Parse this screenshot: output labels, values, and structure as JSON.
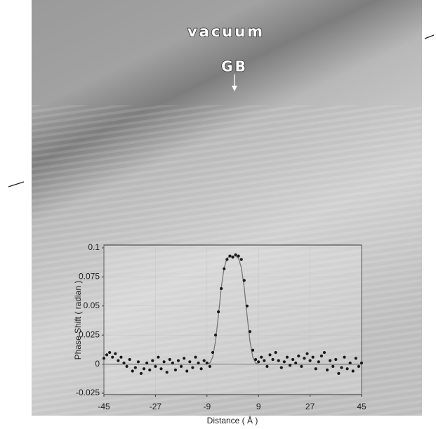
{
  "chart_data": {
    "type": "scatter",
    "annotations": [
      "vacuum",
      "GB"
    ],
    "xlabel": "Distance ( Å )",
    "ylabel": "Phase Shift ( radian )",
    "xlim": [
      -45,
      45
    ],
    "xticks": [
      -45,
      -27,
      -9,
      9,
      27,
      45
    ],
    "ylim": [
      -0.025,
      0.1
    ],
    "yticks": [
      -0.025,
      0,
      0.025,
      0.05,
      0.075,
      0.1
    ],
    "grid": true,
    "x": [
      -45,
      -44,
      -43,
      -42,
      -41,
      -40,
      -39,
      -38,
      -37,
      -36,
      -35,
      -34,
      -33,
      -32,
      -31,
      -30,
      -29,
      -28,
      -27,
      -26,
      -25,
      -24,
      -23,
      -22,
      -21,
      -20,
      -19,
      -18,
      -17,
      -16,
      -15,
      -14,
      -13,
      -12,
      -11,
      -10,
      -9,
      -8,
      -7,
      -6,
      -5,
      -4,
      -3,
      -2,
      -1,
      0,
      1,
      2,
      3,
      4,
      5,
      6,
      7,
      8,
      9,
      10,
      11,
      12,
      13,
      14,
      15,
      16,
      17,
      18,
      19,
      20,
      21,
      22,
      23,
      24,
      25,
      26,
      27,
      28,
      29,
      30,
      31,
      32,
      33,
      34,
      35,
      36,
      37,
      38,
      39,
      40,
      41,
      42,
      43,
      44,
      45
    ],
    "series": [
      {
        "mode": "line",
        "color": "#777777",
        "values": [
          0,
          0,
          0,
          0,
          0,
          0,
          0,
          0,
          0,
          0,
          0,
          0,
          0,
          0,
          0,
          0,
          0,
          0,
          0,
          0,
          0,
          0,
          0,
          0,
          0,
          0,
          0,
          0,
          0,
          0,
          0,
          0,
          0,
          0,
          0,
          0,
          0,
          0.001,
          0.006,
          0.02,
          0.042,
          0.066,
          0.083,
          0.091,
          0.093,
          0.093,
          0.093,
          0.091,
          0.083,
          0.066,
          0.042,
          0.02,
          0.006,
          0.001,
          0,
          0,
          0,
          0,
          0,
          0,
          0,
          0,
          0,
          0,
          0,
          0,
          0,
          0,
          0,
          0,
          0,
          0,
          0,
          0,
          0,
          0,
          0,
          0,
          0,
          0,
          0,
          0,
          0,
          0,
          0,
          0,
          0,
          0,
          0,
          0,
          0
        ]
      },
      {
        "mode": "dots",
        "color": "#1a1a1a",
        "values": [
          0.005,
          0.008,
          0.01,
          0.006,
          0.009,
          0.003,
          0.006,
          0.001,
          -0.002,
          0.004,
          -0.006,
          -0.003,
          0.002,
          -0.008,
          -0.004,
          0.001,
          -0.005,
          0.003,
          -0.002,
          0.006,
          -0.004,
          0.002,
          -0.007,
          0.004,
          0.001,
          -0.005,
          0.003,
          -0.002,
          0.005,
          -0.006,
          0.002,
          -0.003,
          0.006,
          0.001,
          -0.004,
          0.003,
          0.001,
          -0.002,
          0.01,
          0.025,
          0.045,
          0.065,
          0.082,
          0.09,
          0.093,
          0.092,
          0.094,
          0.093,
          0.09,
          0.072,
          0.05,
          0.028,
          0.012,
          0.004,
          0.002,
          0.006,
          0.003,
          -0.002,
          0.008,
          0.004,
          0.01,
          0.003,
          -0.003,
          0.002,
          0.006,
          -0.001,
          0.004,
          0.001,
          0.007,
          -0.002,
          0.005,
          0.009,
          0.003,
          0.006,
          -0.004,
          0.002,
          0.007,
          0.01,
          -0.005,
          0.003,
          -0.002,
          0.004,
          -0.008,
          -0.003,
          0.006,
          -0.004,
          0.001,
          -0.006,
          0.005,
          -0.002,
          0.001
        ]
      }
    ]
  }
}
